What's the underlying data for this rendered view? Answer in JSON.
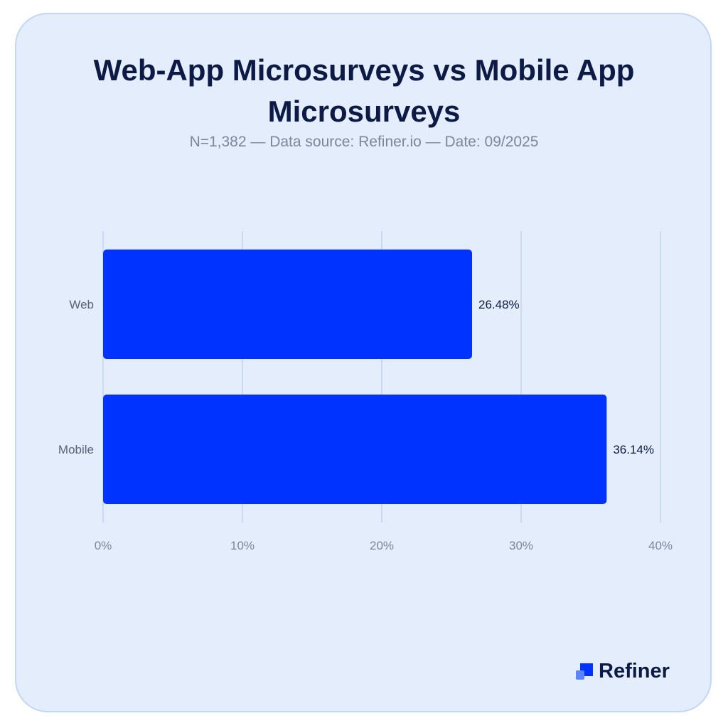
{
  "chart_data": {
    "type": "bar",
    "orientation": "horizontal",
    "title": "Web-App Microsurveys vs Mobile App Microsurveys",
    "subtitle": "N=1,382  —  Data source: Refiner.io  —  Date: 09/2025",
    "categories": [
      "Web",
      "Mobile"
    ],
    "values": [
      26.48,
      36.14
    ],
    "data_labels": [
      "26.48%",
      "36.14%"
    ],
    "xlim": [
      0,
      40
    ],
    "x_ticks": [
      "0%",
      "10%",
      "20%",
      "30%",
      "40%"
    ],
    "x_tick_values": [
      0,
      10,
      20,
      30,
      40
    ],
    "grid": true,
    "bar_color": "#0033ff"
  },
  "brand": {
    "name": "Refiner",
    "accent": "#0033ff"
  }
}
